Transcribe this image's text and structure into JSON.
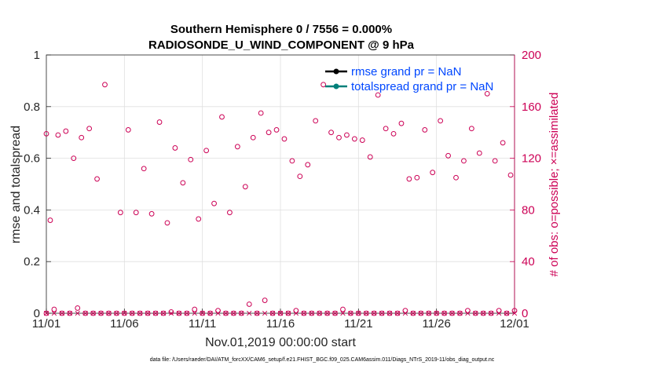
{
  "chart_data": {
    "type": "scatter",
    "title": "Southern Hemisphere 0 / 7556 = 0.000%",
    "subtitle": "RADIOSONDE_U_WIND_COMPONENT @ 9 hPa",
    "xlabel": "Nov.01,2019 00:00:00 start",
    "ylabel": "rmse and totalspread",
    "y2label": "# of obs: o=possible; ×=assimilated",
    "footnote": "data file: /Users/raeder/DAI/ATM_forcXX/CAM6_setup/f.e21.FHIST_BGC.f09_025.CAM6assim.011/Diags_NTrS_2019-11/obs_diag_output.nc",
    "xlim": [
      0,
      30
    ],
    "xtick_positions": [
      0,
      5,
      10,
      15,
      20,
      25,
      30
    ],
    "xtick_labels": [
      "11/01",
      "11/06",
      "11/11",
      "11/16",
      "11/21",
      "11/26",
      "12/01"
    ],
    "ylim": [
      0,
      1
    ],
    "ytick_labels": [
      "0",
      "0.2",
      "0.4",
      "0.6",
      "0.8",
      "1"
    ],
    "y2lim": [
      0,
      200
    ],
    "y2tick_labels": [
      "0",
      "40",
      "80",
      "120",
      "160",
      "200"
    ],
    "grid": true,
    "legend": {
      "position": "top-right",
      "entries": [
        {
          "label": "rmse grand pr = NaN",
          "color": "#000000"
        },
        {
          "label": "totalspread grand pr = NaN",
          "color": "#00807a"
        }
      ]
    },
    "series": [
      {
        "name": "obs possible (upper)",
        "axis": "right",
        "color": "#cc0055",
        "x": [
          0.0,
          0.25,
          0.75,
          1.25,
          1.75,
          2.25,
          2.75,
          3.25,
          3.75,
          4.75,
          5.25,
          5.75,
          6.25,
          6.75,
          7.25,
          7.75,
          8.25,
          8.75,
          9.25,
          9.75,
          10.25,
          10.75,
          11.25,
          11.75,
          12.25,
          12.75,
          13.25,
          13.75,
          14.25,
          14.75,
          15.25,
          15.75,
          16.25,
          16.75,
          17.25,
          17.75,
          18.25,
          18.75,
          19.25,
          19.75,
          20.25,
          20.75,
          21.25,
          21.75,
          22.25,
          22.75,
          23.25,
          23.75,
          24.25,
          24.75,
          25.25,
          25.75,
          26.25,
          26.75,
          27.25,
          27.75,
          28.25,
          28.75,
          29.25,
          29.75
        ],
        "y": [
          139,
          72,
          138,
          141,
          120,
          136,
          143,
          104,
          177,
          78,
          142,
          78,
          112,
          77,
          148,
          70,
          128,
          101,
          119,
          73,
          126,
          85,
          152,
          78,
          129,
          98,
          136,
          155,
          140,
          142,
          135,
          118,
          106,
          115,
          149,
          177,
          140,
          136,
          138,
          135,
          134,
          121,
          169,
          143,
          139,
          147,
          104,
          105,
          142,
          109,
          149,
          122,
          105,
          118,
          143,
          124,
          170,
          118,
          132,
          107
        ]
      },
      {
        "name": "obs possible (lower)",
        "axis": "right",
        "color": "#cc0055",
        "x": [
          0.0,
          0.5,
          1.0,
          1.5,
          2.0,
          2.5,
          3.0,
          3.5,
          4.0,
          4.5,
          5.0,
          5.5,
          6.0,
          6.5,
          7.0,
          7.5,
          8.0,
          8.5,
          9.0,
          9.5,
          10.0,
          10.5,
          11.0,
          11.5,
          12.0,
          12.5,
          13.0,
          13.5,
          14.0,
          14.5,
          15.0,
          15.5,
          16.0,
          16.5,
          17.0,
          17.5,
          18.0,
          18.5,
          19.0,
          19.5,
          20.0,
          20.5,
          21.0,
          21.5,
          22.0,
          22.5,
          23.0,
          23.5,
          24.0,
          24.5,
          25.0,
          25.5,
          26.0,
          26.5,
          27.0,
          27.5,
          28.0,
          28.5,
          29.0,
          29.5,
          30.0
        ],
        "y": [
          0,
          3,
          0,
          0,
          4,
          0,
          0,
          0,
          0,
          0,
          0,
          0,
          0,
          0,
          0,
          0,
          1,
          0,
          0,
          3,
          0,
          0,
          2,
          0,
          0,
          0,
          7,
          0,
          10,
          0,
          0,
          0,
          2,
          0,
          0,
          0,
          0,
          0,
          3,
          0,
          0,
          0,
          0,
          0,
          0,
          0,
          2,
          0,
          0,
          0,
          0,
          0,
          0,
          0,
          2,
          0,
          0,
          0,
          2,
          0,
          2
        ]
      },
      {
        "name": "obs assimilated",
        "axis": "right",
        "color": "#cc0055",
        "x": [
          0.0,
          0.5,
          1.0,
          1.5,
          2.0,
          2.5,
          3.0,
          3.5,
          4.0,
          4.5,
          5.0,
          5.5,
          6.0,
          6.5,
          7.0,
          7.5,
          8.0,
          8.5,
          9.0,
          9.5,
          10.0,
          10.5,
          11.0,
          11.5,
          12.0,
          12.5,
          13.0,
          13.5,
          14.0,
          14.5,
          15.0,
          15.5,
          16.0,
          16.5,
          17.0,
          17.5,
          18.0,
          18.5,
          19.0,
          19.5,
          20.0,
          20.5,
          21.0,
          21.5,
          22.0,
          22.5,
          23.0,
          23.5,
          24.0,
          24.5,
          25.0,
          25.5,
          26.0,
          26.5,
          27.0,
          27.5,
          28.0,
          28.5,
          29.0,
          29.5,
          30.0
        ],
        "y": [
          0,
          0,
          0,
          0,
          0,
          0,
          0,
          0,
          0,
          0,
          0,
          0,
          0,
          0,
          0,
          0,
          0,
          0,
          0,
          0,
          0,
          0,
          0,
          0,
          0,
          0,
          0,
          0,
          0,
          0,
          0,
          0,
          0,
          0,
          0,
          0,
          0,
          0,
          0,
          0,
          0,
          0,
          0,
          0,
          0,
          0,
          0,
          0,
          0,
          0,
          0,
          0,
          0,
          0,
          0,
          0,
          0,
          0,
          0,
          0,
          0
        ]
      },
      {
        "name": "rmse",
        "axis": "left",
        "color": "#000000",
        "values": []
      },
      {
        "name": "totalspread",
        "axis": "left",
        "color": "#00807a",
        "values": []
      }
    ]
  }
}
